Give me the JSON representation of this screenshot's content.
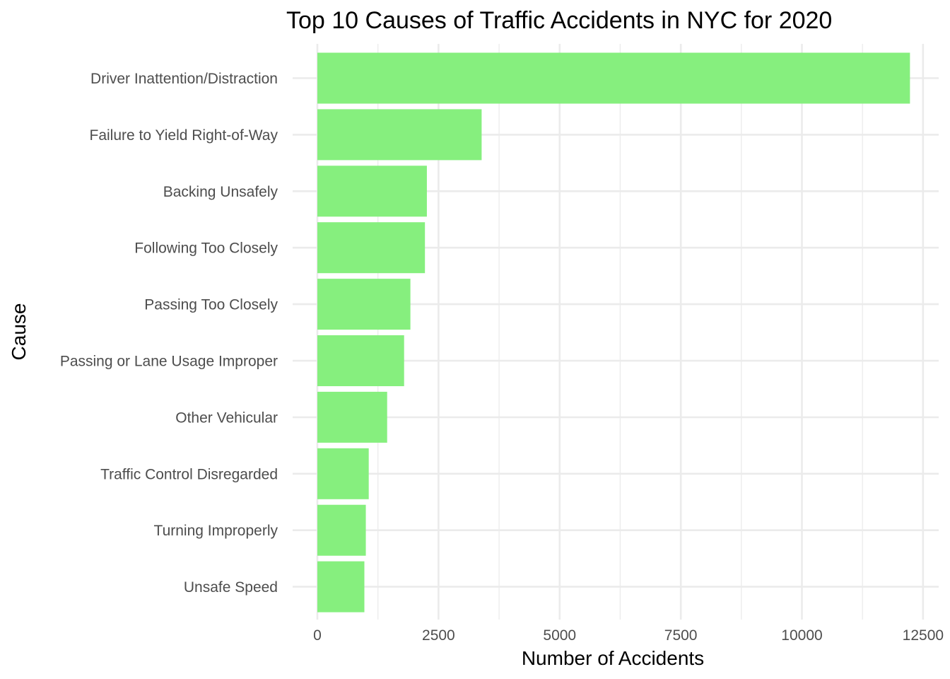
{
  "chart_data": {
    "type": "bar",
    "orientation": "horizontal",
    "title": "Top 10 Causes of Traffic Accidents in NYC for 2020",
    "xlabel": "Number of Accidents",
    "ylabel": "Cause",
    "categories": [
      "Driver Inattention/Distraction",
      "Failure to Yield Right-of-Way",
      "Backing Unsafely",
      "Following Too Closely",
      "Passing Too Closely",
      "Passing or Lane Usage Improper",
      "Other Vehicular",
      "Traffic Control Disregarded",
      "Turning Improperly",
      "Unsafe Speed"
    ],
    "values": [
      12230,
      3390,
      2260,
      2220,
      1920,
      1790,
      1440,
      1060,
      1000,
      970
    ],
    "xlim": [
      0,
      12800
    ],
    "x_ticks": [
      "0",
      "2500",
      "5000",
      "7500",
      "10000",
      "12500"
    ],
    "x_tick_values": [
      0,
      2500,
      5000,
      7500,
      10000,
      12500
    ],
    "bar_color": "#86ef7e",
    "grid": true,
    "legend": "none"
  }
}
